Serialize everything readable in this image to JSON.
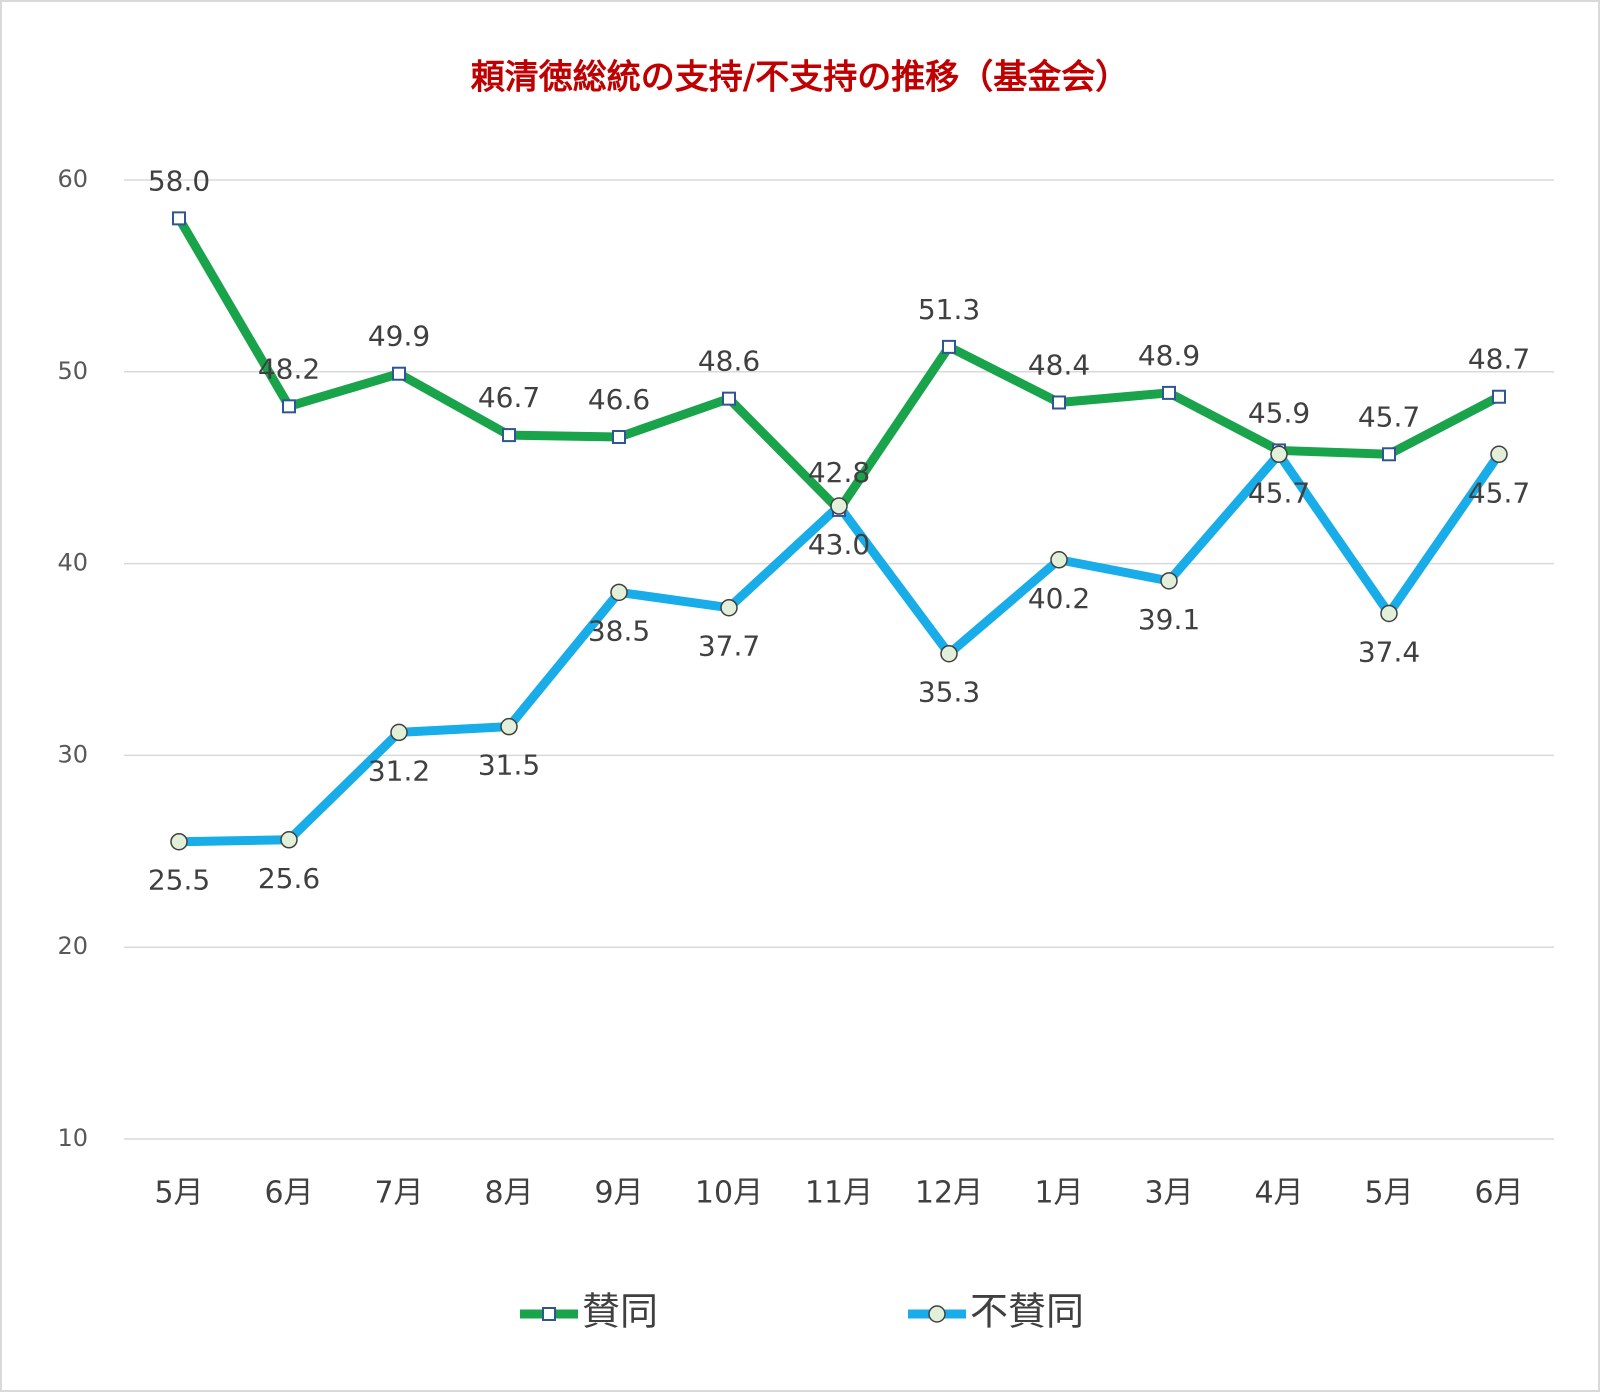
{
  "chart_data": {
    "type": "line",
    "title": "頼清徳総統の支持/不支持の推移（基金会）",
    "categories": [
      "5月",
      "6月",
      "7月",
      "8月",
      "9月",
      "10月",
      "11月",
      "12月",
      "1月",
      "3月",
      "4月",
      "5月",
      "6月"
    ],
    "series": [
      {
        "name": "賛同",
        "color": "#19a34a",
        "marker": "square",
        "values": [
          58.0,
          48.2,
          49.9,
          46.7,
          46.6,
          48.6,
          42.8,
          51.3,
          48.4,
          48.9,
          45.9,
          45.7,
          48.7
        ],
        "value_labels": [
          "58.0",
          "48.2",
          "49.9",
          "46.7",
          "46.6",
          "48.6",
          "42.8",
          "51.3",
          "48.4",
          "48.9",
          "45.9",
          "45.7",
          "48.7"
        ]
      },
      {
        "name": "不賛同",
        "color": "#18ade8",
        "marker": "circle",
        "values": [
          25.5,
          25.6,
          31.2,
          31.5,
          38.5,
          37.7,
          43.0,
          35.3,
          40.2,
          39.1,
          45.7,
          37.4,
          45.7
        ],
        "value_labels": [
          "25.5",
          "25.6",
          "31.2",
          "31.5",
          "38.5",
          "37.7",
          "43.0",
          "35.3",
          "40.2",
          "39.1",
          "45.7",
          "37.4",
          "45.7"
        ]
      }
    ],
    "ylim": [
      10,
      60
    ],
    "yticks": [
      10,
      20,
      30,
      40,
      50,
      60
    ],
    "grid": true,
    "legend": "bottom"
  }
}
